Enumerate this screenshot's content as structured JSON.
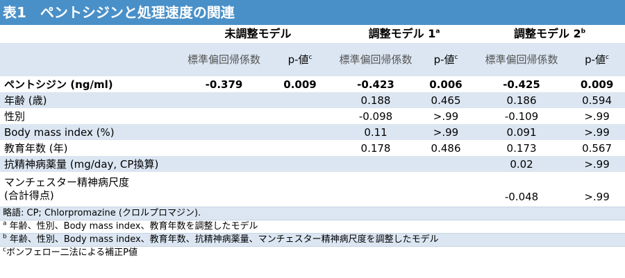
{
  "title": "表1　ペントシジンと処理速度の関連",
  "headers": {
    "groups": [
      {
        "label": "未調整モデル",
        "sup": ""
      },
      {
        "label": "調整モデル 1",
        "sup": "a"
      },
      {
        "label": "調整モデル 2",
        "sup": "b"
      }
    ],
    "coef_label": "標準偏回帰係数",
    "pval_label": "p-値",
    "pval_sup": "c"
  },
  "rows": [
    {
      "label": "ペントシジン (ng/ml)",
      "bold": true,
      "values": [
        "-0.379",
        "0.009",
        "-0.423",
        "0.006",
        "-0.425",
        "0.009"
      ]
    },
    {
      "label": "年齢 (歳)",
      "values": [
        "",
        "",
        "0.188",
        "0.465",
        "0.186",
        "0.594"
      ]
    },
    {
      "label": "性別",
      "values": [
        "",
        "",
        "-0.098",
        ">.99",
        "-0.109",
        ">.99"
      ]
    },
    {
      "label": "Body mass index (%)",
      "values": [
        "",
        "",
        "0.11",
        ">.99",
        "0.091",
        ">.99"
      ]
    },
    {
      "label": "教育年数 (年)",
      "values": [
        "",
        "",
        "0.178",
        "0.486",
        "0.173",
        "0.567"
      ]
    },
    {
      "label": "抗精神病薬量 (mg/day, CP換算)",
      "values": [
        "",
        "",
        "",
        "",
        "0.02",
        ">.99"
      ]
    },
    {
      "label_line1": "マンチェスター精神病尺度",
      "label_line2": "(合計得点)",
      "values": [
        "",
        "",
        "",
        "",
        "-0.048",
        ">.99"
      ]
    }
  ],
  "notes": {
    "abbrev": "略語: CP; Chlorpromazine (クロルプロマジン).",
    "a_sup": "a",
    "a_text": "年齢、性別、Body mass index、教育年数を調整したモデル",
    "b_sup": "b",
    "b_text": "年齢、性別、Body mass index、教育年数、抗精神病薬量、マンチェスター精神病尺度を調整したモデル",
    "c_sup": "c",
    "c_text": "ボンフェロー二法による補正P値"
  },
  "colors": {
    "title_bg": "#4a90c8",
    "band_bg": "#dbe6f2"
  }
}
